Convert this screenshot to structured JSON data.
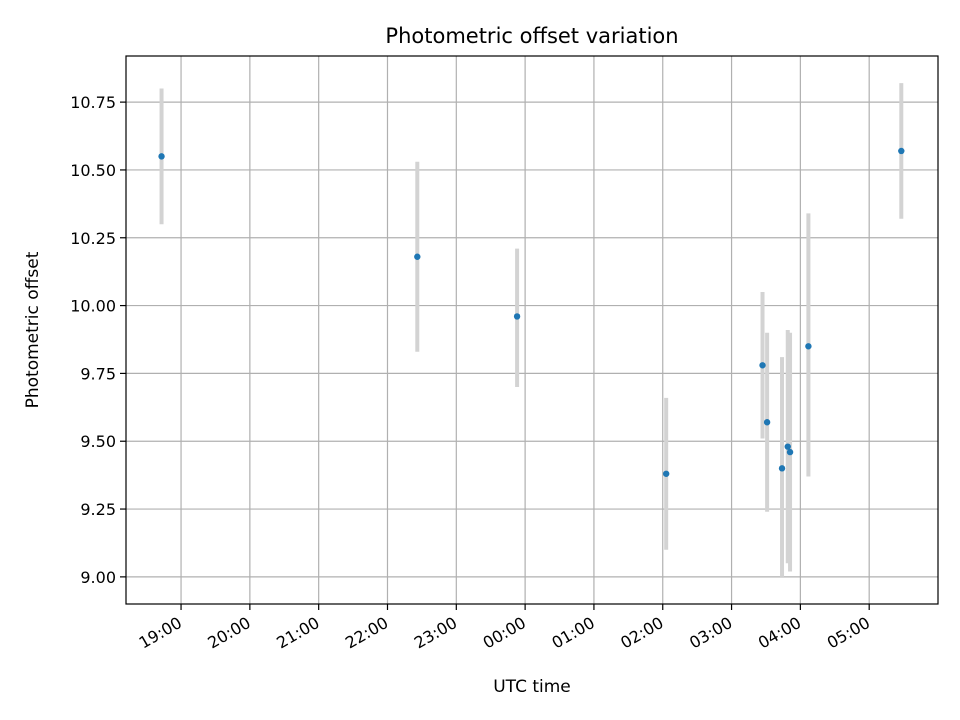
{
  "chart_data": {
    "type": "scatter",
    "title": "Photometric offset variation",
    "xlabel": "UTC time",
    "ylabel": "Photometric offset",
    "x_axis_kind": "time",
    "xlim": [
      "18:12",
      "06:00"
    ],
    "ylim": [
      8.9,
      10.92
    ],
    "x_ticks": [
      "19:00",
      "20:00",
      "21:00",
      "22:00",
      "23:00",
      "00:00",
      "01:00",
      "02:00",
      "03:00",
      "04:00",
      "05:00"
    ],
    "y_ticks": [
      "9.00",
      "9.25",
      "9.50",
      "9.75",
      "10.00",
      "10.25",
      "10.50",
      "10.75"
    ],
    "y_tick_values": [
      9.0,
      9.25,
      9.5,
      9.75,
      10.0,
      10.25,
      10.5,
      10.75
    ],
    "grid": true,
    "legend": "none",
    "colors": {
      "point": "#1f77b4",
      "errorbar": "#d3d3d3",
      "grid": "#b0b0b0"
    },
    "points": [
      {
        "time": "18:43",
        "y": 10.55,
        "yerr_low": 10.3,
        "yerr_high": 10.8
      },
      {
        "time": "22:26",
        "y": 10.18,
        "yerr_low": 9.83,
        "yerr_high": 10.53
      },
      {
        "time": "23:53",
        "y": 9.96,
        "yerr_low": 9.7,
        "yerr_high": 10.21
      },
      {
        "time": "02:03",
        "y": 9.38,
        "yerr_low": 9.1,
        "yerr_high": 9.66
      },
      {
        "time": "03:27",
        "y": 9.78,
        "yerr_low": 9.51,
        "yerr_high": 10.05
      },
      {
        "time": "03:31",
        "y": 9.57,
        "yerr_low": 9.24,
        "yerr_high": 9.9
      },
      {
        "time": "03:44",
        "y": 9.4,
        "yerr_low": 9.0,
        "yerr_high": 9.81
      },
      {
        "time": "03:49",
        "y": 9.48,
        "yerr_low": 9.05,
        "yerr_high": 9.91
      },
      {
        "time": "03:51",
        "y": 9.46,
        "yerr_low": 9.02,
        "yerr_high": 9.9
      },
      {
        "time": "04:07",
        "y": 9.85,
        "yerr_low": 9.37,
        "yerr_high": 10.34
      },
      {
        "time": "05:28",
        "y": 10.57,
        "yerr_low": 10.32,
        "yerr_high": 10.82
      }
    ]
  }
}
